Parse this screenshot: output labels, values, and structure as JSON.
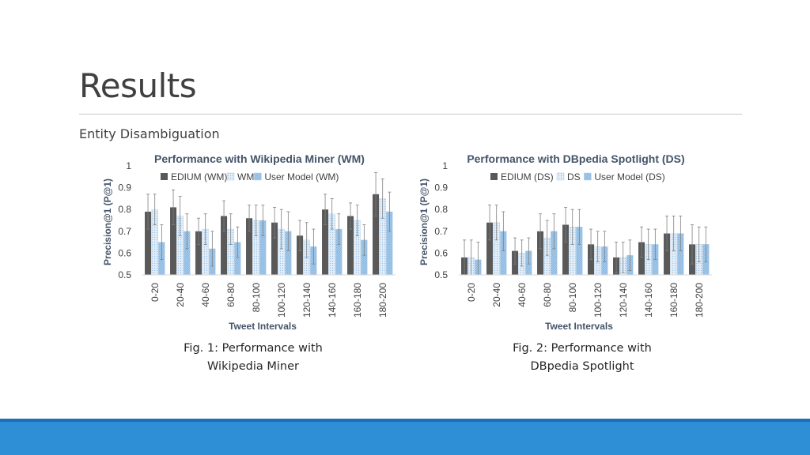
{
  "slide": {
    "title": "Results",
    "subtitle": "Entity Disambiguation",
    "captions": [
      [
        "Fig. 1: Performance with",
        "Wikipedia Miner"
      ],
      [
        "Fig. 2: Performance with",
        "DBpedia Spotlight"
      ]
    ],
    "colors": {
      "footer": "#2e8fd6",
      "series_dark": "#595959",
      "series_light": "#dbe9f6",
      "series_blue": "#9dc3e6"
    }
  },
  "chart_data": [
    {
      "type": "bar",
      "title": "Performance with Wikipedia Miner (WM)",
      "xlabel": "Tweet Intervals",
      "ylabel": "Precision@1 (P@1)",
      "ylim": [
        0.5,
        1
      ],
      "yticks": [
        "0.5",
        "0.6",
        "0.7",
        "0.8",
        "0.9",
        "1"
      ],
      "grid": false,
      "legend": "top",
      "categories": [
        "0-20",
        "20-40",
        "40-60",
        "60-80",
        "80-100",
        "100-120",
        "120-140",
        "140-160",
        "160-180",
        "180-200"
      ],
      "series": [
        {
          "name": "EDIUM (WM)",
          "values": [
            0.79,
            0.81,
            0.7,
            0.77,
            0.76,
            0.74,
            0.68,
            0.8,
            0.77,
            0.87
          ],
          "errors": [
            0.08,
            0.08,
            0.06,
            0.07,
            0.06,
            0.07,
            0.07,
            0.07,
            0.06,
            0.1
          ]
        },
        {
          "name": "WM",
          "values": [
            0.8,
            0.77,
            0.71,
            0.71,
            0.75,
            0.71,
            0.66,
            0.78,
            0.75,
            0.85
          ],
          "errors": [
            0.07,
            0.09,
            0.07,
            0.07,
            0.07,
            0.09,
            0.08,
            0.07,
            0.07,
            0.09
          ]
        },
        {
          "name": "User Model (WM)",
          "values": [
            0.65,
            0.7,
            0.62,
            0.65,
            0.75,
            0.7,
            0.63,
            0.71,
            0.66,
            0.79
          ],
          "errors": [
            0.08,
            0.08,
            0.08,
            0.07,
            0.07,
            0.09,
            0.08,
            0.07,
            0.07,
            0.09
          ]
        }
      ]
    },
    {
      "type": "bar",
      "title": "Performance with DBpedia Spotlight (DS)",
      "xlabel": "Tweet Intervals",
      "ylabel": "Precision@1 (P@1)",
      "ylim": [
        0.5,
        1
      ],
      "yticks": [
        "0.5",
        "0.6",
        "0.7",
        "0.8",
        "0.9",
        "1"
      ],
      "grid": false,
      "legend": "top",
      "categories": [
        "0-20",
        "20-40",
        "40-60",
        "60-80",
        "80-100",
        "100-120",
        "120-140",
        "140-160",
        "160-180",
        "180-200"
      ],
      "series": [
        {
          "name": "EDIUM (DS)",
          "values": [
            0.58,
            0.74,
            0.61,
            0.7,
            0.73,
            0.64,
            0.58,
            0.65,
            0.69,
            0.64
          ],
          "errors": [
            0.08,
            0.08,
            0.06,
            0.08,
            0.08,
            0.07,
            0.07,
            0.07,
            0.08,
            0.09
          ]
        },
        {
          "name": "DS",
          "values": [
            0.58,
            0.74,
            0.6,
            0.67,
            0.72,
            0.63,
            0.58,
            0.64,
            0.69,
            0.64
          ],
          "errors": [
            0.08,
            0.08,
            0.06,
            0.08,
            0.08,
            0.07,
            0.07,
            0.07,
            0.08,
            0.08
          ]
        },
        {
          "name": "User Model (DS)",
          "values": [
            0.57,
            0.7,
            0.61,
            0.7,
            0.72,
            0.63,
            0.59,
            0.64,
            0.69,
            0.64
          ],
          "errors": [
            0.08,
            0.09,
            0.06,
            0.08,
            0.08,
            0.07,
            0.07,
            0.07,
            0.08,
            0.08
          ]
        }
      ]
    }
  ]
}
